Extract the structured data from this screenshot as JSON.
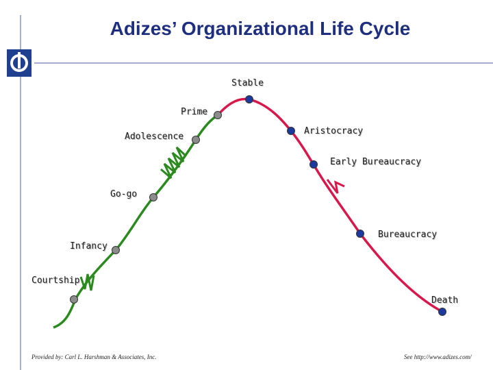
{
  "slide": {
    "title": "Adizes’ Organizational Life Cycle",
    "footer_left": "Provided by: Carl L. Harshman & Associates, Inc.",
    "footer_right": "See http://www.adizes.com/"
  },
  "colors": {
    "title": "#1f2f80",
    "growth_curve": "#2a8a1e",
    "aging_curve": "#d8184a",
    "growth_node": "#8c8c8c",
    "aging_node": "#1c3a9e",
    "logo_blue": "#1f3f8f"
  },
  "diagram": {
    "curve_phases": [
      "growth",
      "aging"
    ],
    "stages": [
      {
        "name": "Courtship",
        "phase": "growth"
      },
      {
        "name": "Infancy",
        "phase": "growth"
      },
      {
        "name": "Go-go",
        "phase": "growth"
      },
      {
        "name": "Adolescence",
        "phase": "growth"
      },
      {
        "name": "Prime",
        "phase": "growth"
      },
      {
        "name": "Stable",
        "phase": "aging"
      },
      {
        "name": "Aristocracy",
        "phase": "aging"
      },
      {
        "name": "Early Bureaucracy",
        "phase": "aging"
      },
      {
        "name": "Bureaucracy",
        "phase": "aging"
      },
      {
        "name": "Death",
        "phase": "aging"
      }
    ],
    "transition_marks": [
      "courtship-infancy-squiggle",
      "adolescence-squiggle",
      "early-bureaucracy-squiggle"
    ]
  },
  "logo": {
    "icon": "adizes-logo-icon"
  }
}
